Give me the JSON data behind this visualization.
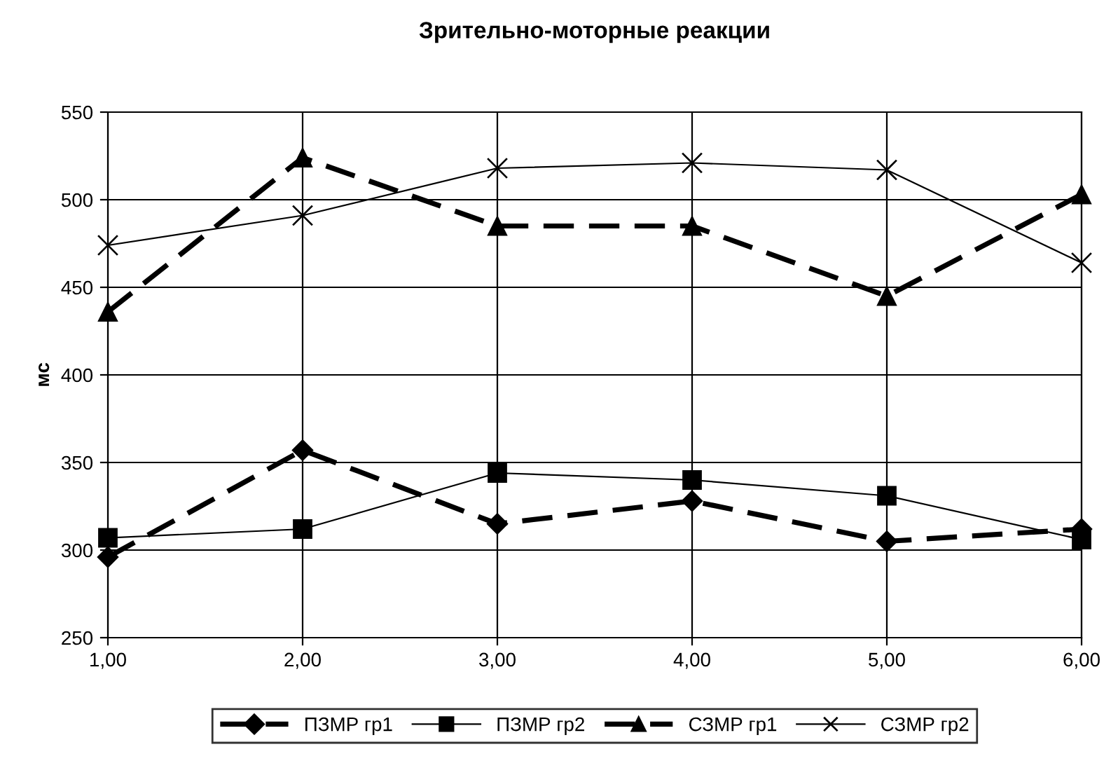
{
  "chart_data": {
    "type": "line",
    "title": "Зрительно-моторные реакции",
    "ylabel": "мс",
    "x": [
      1,
      2,
      3,
      4,
      5,
      6
    ],
    "xlim": [
      1,
      6
    ],
    "xticks": [
      {
        "value": 1,
        "label": "1,00"
      },
      {
        "value": 2,
        "label": "2,00"
      },
      {
        "value": 3,
        "label": "3,00"
      },
      {
        "value": 4,
        "label": "4,00"
      },
      {
        "value": 5,
        "label": "5,00"
      },
      {
        "value": 6,
        "label": "6,00"
      }
    ],
    "ylim": [
      250,
      550
    ],
    "yticks": [
      250,
      300,
      350,
      400,
      450,
      500,
      550
    ],
    "grid": true,
    "legend": "bottom",
    "series": [
      {
        "name": "ПЗМР гр1",
        "color": "#000000",
        "marker": "diamond",
        "line_style": "dashed",
        "values": [
          296,
          357,
          315,
          328,
          305,
          312
        ]
      },
      {
        "name": "ПЗМР гр2",
        "color": "#000000",
        "marker": "square",
        "line_style": "solid",
        "values": [
          307,
          312,
          344,
          340,
          331,
          306
        ]
      },
      {
        "name": "СЗМР гр1",
        "color": "#000000",
        "marker": "triangle",
        "line_style": "dashed",
        "values": [
          436,
          524,
          485,
          485,
          445,
          503
        ]
      },
      {
        "name": "СЗМР гр2",
        "color": "#000000",
        "marker": "cross",
        "line_style": "solid",
        "values": [
          474,
          491,
          518,
          521,
          517,
          464
        ]
      }
    ]
  }
}
